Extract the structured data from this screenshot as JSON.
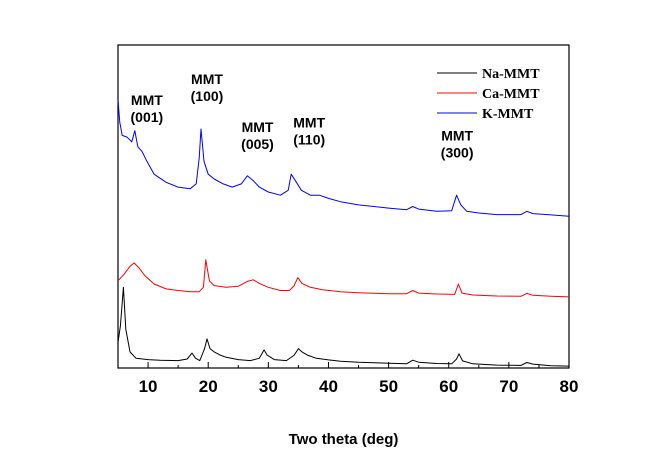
{
  "chart_data": {
    "type": "line",
    "title": "",
    "xlabel": "Two theta (deg)",
    "ylabel": "",
    "xlim": [
      5,
      80
    ],
    "ylim": [
      0,
      100
    ],
    "x_ticks": [
      10,
      20,
      30,
      40,
      50,
      60,
      70,
      80
    ],
    "y_ticks_shown": false,
    "grid": false,
    "legend_position": "top-right",
    "series": [
      {
        "name": "Na-MMT",
        "color": "#000000",
        "points": [
          [
            5.0,
            8
          ],
          [
            5.4,
            13
          ],
          [
            5.9,
            25
          ],
          [
            6.3,
            12
          ],
          [
            7,
            5
          ],
          [
            8,
            3
          ],
          [
            10,
            2.6
          ],
          [
            12,
            2.4
          ],
          [
            15,
            2.3
          ],
          [
            16.5,
            2.8
          ],
          [
            17.3,
            4.6
          ],
          [
            17.9,
            3
          ],
          [
            18.6,
            2.3
          ],
          [
            19.4,
            6
          ],
          [
            19.8,
            9
          ],
          [
            20.3,
            6
          ],
          [
            21,
            5
          ],
          [
            22,
            4
          ],
          [
            23,
            3.3
          ],
          [
            25,
            2.6
          ],
          [
            27,
            2.3
          ],
          [
            28.5,
            3
          ],
          [
            29.3,
            5.6
          ],
          [
            29.8,
            4
          ],
          [
            31,
            2.6
          ],
          [
            33,
            2.3
          ],
          [
            34.3,
            4
          ],
          [
            35,
            6
          ],
          [
            35.6,
            5
          ],
          [
            36.5,
            4
          ],
          [
            38,
            3
          ],
          [
            40,
            2.5
          ],
          [
            42,
            2.1
          ],
          [
            45,
            1.8
          ],
          [
            50,
            1.5
          ],
          [
            53,
            1.3
          ],
          [
            54,
            2.4
          ],
          [
            55,
            1.8
          ],
          [
            58,
            1.4
          ],
          [
            60.5,
            1.3
          ],
          [
            61.3,
            2.8
          ],
          [
            61.7,
            4.4
          ],
          [
            62.3,
            2.2
          ],
          [
            64,
            1.3
          ],
          [
            68,
            0.9
          ],
          [
            72,
            0.8
          ],
          [
            73,
            1.7
          ],
          [
            74,
            1.2
          ],
          [
            77,
            0.7
          ],
          [
            80,
            0.6
          ]
        ]
      },
      {
        "name": "Ca-MMT",
        "color": "#ff0000",
        "points": [
          [
            5.0,
            27
          ],
          [
            6,
            29
          ],
          [
            7,
            31.5
          ],
          [
            7.7,
            32.5
          ],
          [
            8.5,
            31
          ],
          [
            9.5,
            28.5
          ],
          [
            11,
            26
          ],
          [
            13,
            24.5
          ],
          [
            15,
            24
          ],
          [
            17,
            23.6
          ],
          [
            18.5,
            23.6
          ],
          [
            19.2,
            25
          ],
          [
            19.6,
            33.5
          ],
          [
            20.2,
            27
          ],
          [
            21,
            25.5
          ],
          [
            23,
            25
          ],
          [
            25,
            25.3
          ],
          [
            26.5,
            26.8
          ],
          [
            27.5,
            27.3
          ],
          [
            28.5,
            26.2
          ],
          [
            30,
            25
          ],
          [
            32,
            24
          ],
          [
            33.5,
            24
          ],
          [
            34.3,
            25.5
          ],
          [
            34.9,
            28
          ],
          [
            35.6,
            26.2
          ],
          [
            37,
            25
          ],
          [
            39,
            24.2
          ],
          [
            42,
            23.6
          ],
          [
            45,
            23.3
          ],
          [
            50,
            23
          ],
          [
            53,
            23
          ],
          [
            54,
            24
          ],
          [
            55,
            23.2
          ],
          [
            58,
            22.9
          ],
          [
            61,
            22.8
          ],
          [
            61.6,
            26
          ],
          [
            62.2,
            23.2
          ],
          [
            64,
            22.6
          ],
          [
            68,
            22.3
          ],
          [
            72,
            22.2
          ],
          [
            73,
            23.1
          ],
          [
            74,
            22.5
          ],
          [
            77,
            22.2
          ],
          [
            80,
            22
          ]
        ]
      },
      {
        "name": "K-MMT",
        "color": "#0000ff",
        "points": [
          [
            5.0,
            83
          ],
          [
            5.3,
            76
          ],
          [
            5.7,
            72
          ],
          [
            6.5,
            71.5
          ],
          [
            7.3,
            70
          ],
          [
            7.8,
            73.5
          ],
          [
            8.3,
            68.5
          ],
          [
            9,
            67
          ],
          [
            9.8,
            64
          ],
          [
            11,
            60
          ],
          [
            13,
            57.5
          ],
          [
            15,
            56
          ],
          [
            17,
            55.5
          ],
          [
            18,
            57
          ],
          [
            18.5,
            65
          ],
          [
            18.8,
            74
          ],
          [
            19.3,
            64
          ],
          [
            20,
            60
          ],
          [
            21,
            58.5
          ],
          [
            22.5,
            57
          ],
          [
            24,
            56
          ],
          [
            25.5,
            57
          ],
          [
            26.5,
            59.5
          ],
          [
            27.5,
            58
          ],
          [
            28.5,
            56
          ],
          [
            30,
            54.5
          ],
          [
            32,
            53.5
          ],
          [
            33.3,
            55
          ],
          [
            33.8,
            60
          ],
          [
            34.5,
            58
          ],
          [
            35.5,
            55
          ],
          [
            37,
            53.5
          ],
          [
            38.5,
            53.5
          ],
          [
            40,
            52.5
          ],
          [
            42,
            51.5
          ],
          [
            45,
            50.5
          ],
          [
            50,
            49.5
          ],
          [
            53,
            49
          ],
          [
            54,
            50
          ],
          [
            55,
            49.2
          ],
          [
            58,
            48.5
          ],
          [
            60.5,
            48.7
          ],
          [
            61.3,
            53.5
          ],
          [
            62,
            50.5
          ],
          [
            63,
            48.5
          ],
          [
            65,
            48
          ],
          [
            68,
            47.5
          ],
          [
            72,
            47.5
          ],
          [
            73,
            48.5
          ],
          [
            74,
            47.8
          ],
          [
            77,
            47.4
          ],
          [
            80,
            47
          ]
        ]
      }
    ],
    "annotations": [
      {
        "text_lines": [
          "MMT",
          "(001)"
        ],
        "x": 9.8,
        "y": 81.5
      },
      {
        "text_lines": [
          "MMT",
          "(100)"
        ],
        "x": 19.8,
        "y": 88
      },
      {
        "text_lines": [
          "MMT",
          "(005)"
        ],
        "x": 28.2,
        "y": 73
      },
      {
        "text_lines": [
          "MMT",
          "(110)"
        ],
        "x": 36.8,
        "y": 74.5
      },
      {
        "text_lines": [
          "MMT",
          "(300)"
        ],
        "x": 61.4,
        "y": 70.5
      }
    ]
  }
}
